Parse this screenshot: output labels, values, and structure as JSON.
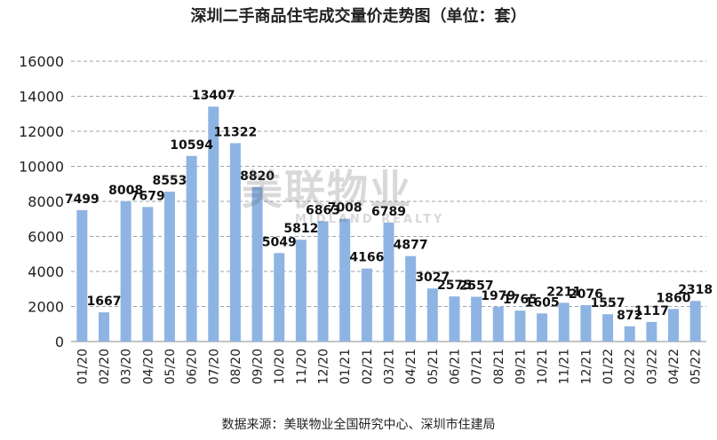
{
  "chart_data": {
    "type": "bar",
    "title": "深圳二手商品住宅成交量价走势图（单位：套）",
    "source": "数据来源：美联物业全国研究中心、深圳市住建局",
    "watermark": {
      "main": "美联物业",
      "sub": "MIDLAND REALTY"
    },
    "categories": [
      "01/20",
      "02/20",
      "03/20",
      "04/20",
      "05/20",
      "06/20",
      "07/20",
      "08/20",
      "09/20",
      "10/20",
      "11/20",
      "12/20",
      "01/21",
      "02/21",
      "03/21",
      "04/21",
      "05/21",
      "06/21",
      "07/21",
      "08/21",
      "09/21",
      "10/21",
      "11/21",
      "12/21",
      "01/22",
      "02/22",
      "03/22",
      "04/22",
      "05/22"
    ],
    "values": [
      7499,
      1667,
      8008,
      7679,
      8553,
      10594,
      13407,
      11322,
      8820,
      5049,
      5812,
      6863,
      7008,
      4166,
      6789,
      4877,
      3027,
      2575,
      2557,
      1979,
      1765,
      1605,
      2211,
      2076,
      1557,
      872,
      1117,
      1860,
      2318
    ],
    "ylim": [
      0,
      16000
    ],
    "yticks": [
      "0",
      "2000",
      "4000",
      "6000",
      "8000",
      "10000",
      "12000",
      "14000",
      "16000"
    ],
    "grid": true,
    "bar_color": "#8EB4E3"
  }
}
